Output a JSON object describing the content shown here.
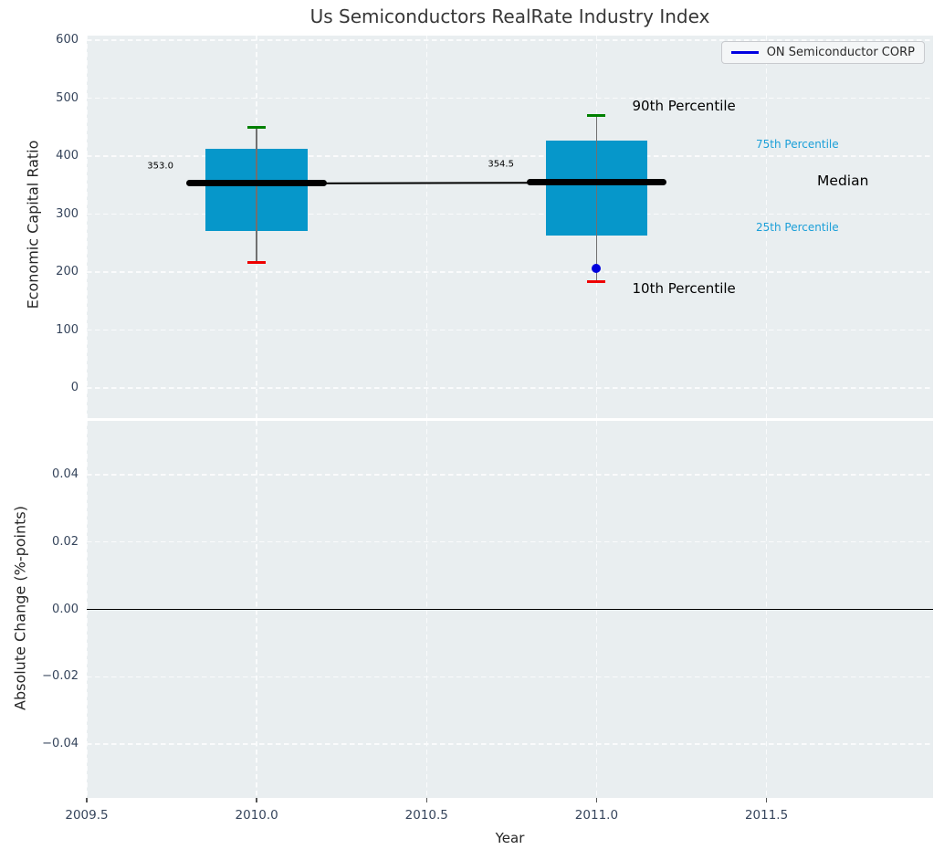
{
  "colors": {
    "figure_bg": "#ffffff",
    "axes_bg": "#e9eef0",
    "grid": "#fafbfc",
    "tick_label": "#36455c",
    "axis_label": "#262626",
    "title": "#373737",
    "box_fill": "#0697ca",
    "whisker": "#707070",
    "median": "#000000",
    "p90_cap": "#008000",
    "p10_cap": "#ee0000",
    "company": "#0000dd",
    "legend_line": "#0000e1",
    "annotation_cyan": "#1b9fd8",
    "zero_line": "#000000",
    "legend_bg": "#f4f6f7",
    "legend_border": "#c8cace"
  },
  "chart_data": {
    "type": "boxplot",
    "title": "Us Semiconductors RealRate Industry Index",
    "legend": {
      "label": "ON Semiconductor CORP"
    },
    "x": {
      "label": "Year",
      "range": [
        2009.5,
        2011.99
      ],
      "ticks": [
        {
          "label": "2009.5",
          "v": 2009.5
        },
        {
          "label": "2010.0",
          "v": 2010.0
        },
        {
          "label": "2010.5",
          "v": 2010.5
        },
        {
          "label": "2011.0",
          "v": 2011.0
        },
        {
          "label": "2011.5",
          "v": 2011.5
        }
      ]
    },
    "top": {
      "ylabel": "Economic Capital Ratio",
      "yrange": [
        -52,
        608
      ],
      "yticks": [
        {
          "label": "0",
          "v": 0
        },
        {
          "label": "100",
          "v": 100
        },
        {
          "label": "200",
          "v": 200
        },
        {
          "label": "300",
          "v": 300
        },
        {
          "label": "400",
          "v": 400
        },
        {
          "label": "500",
          "v": 500
        },
        {
          "label": "600",
          "v": 600
        }
      ],
      "box_width_years": 0.3,
      "boxes": [
        {
          "year": 2010,
          "p10": 217,
          "p25": 271,
          "median": 353.0,
          "p75": 413,
          "p90": 450,
          "median_label": "353.0"
        },
        {
          "year": 2011,
          "p10": 184,
          "p25": 263,
          "median": 354.5,
          "p75": 427,
          "p90": 470,
          "median_label": "354.5"
        }
      ],
      "median_series": [
        [
          2010,
          353.0
        ],
        [
          2011,
          354.5
        ]
      ],
      "company_series": [
        [
          2011,
          207
        ]
      ],
      "annotations": [
        {
          "text": "90th Percentile",
          "x": 2011.105,
          "y": 487,
          "color": "black",
          "size": 15,
          "align": "left"
        },
        {
          "text": "10th Percentile",
          "x": 2011.105,
          "y": 172,
          "color": "black",
          "size": 15,
          "align": "left"
        },
        {
          "text": "75th Percentile",
          "x": 2011.469,
          "y": 420,
          "color": "cyan",
          "size": 12,
          "align": "left"
        },
        {
          "text": "25th Percentile",
          "x": 2011.469,
          "y": 277,
          "color": "cyan",
          "size": 12,
          "align": "left"
        },
        {
          "text": "Median",
          "x": 2011.649,
          "y": 358,
          "color": "black",
          "size": 15.5,
          "align": "left"
        },
        {
          "text": "353.0",
          "x": 2009.755,
          "y": 383,
          "color": "black",
          "size": 10,
          "align": "right"
        },
        {
          "text": "354.5",
          "x": 2010.757,
          "y": 386,
          "color": "black",
          "size": 10,
          "align": "right"
        }
      ]
    },
    "bottom": {
      "ylabel": "Absolute Change (%-points)",
      "yrange": [
        -0.056,
        0.056
      ],
      "yticks": [
        {
          "label": "0.04",
          "v": 0.04
        },
        {
          "label": "0.02",
          "v": 0.02
        },
        {
          "label": "0.00",
          "v": 0.0
        },
        {
          "label": "−0.02",
          "v": -0.02
        },
        {
          "label": "−0.04",
          "v": -0.04
        }
      ],
      "zero_line": 0.0
    }
  }
}
